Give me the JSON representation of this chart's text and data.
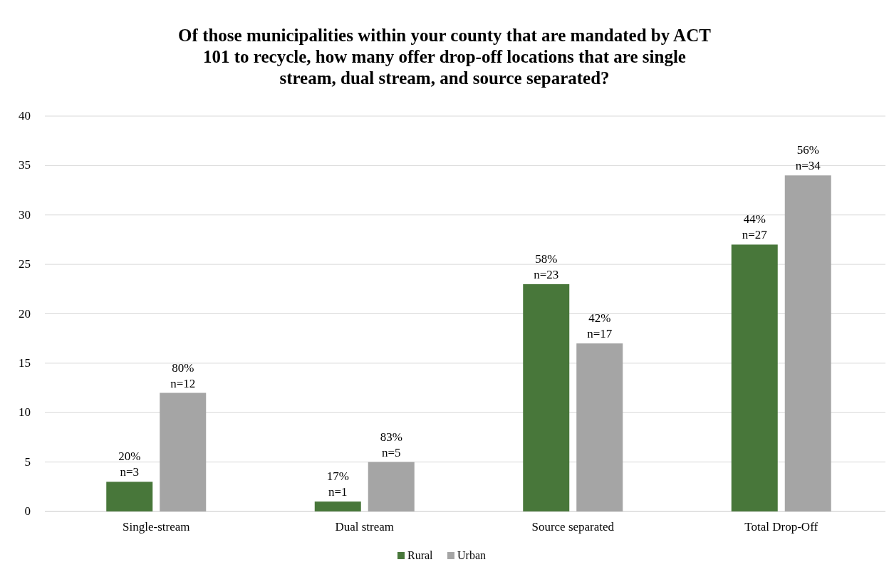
{
  "chart_data": {
    "type": "bar",
    "title": "Of those municipalities within your county that are mandated by ACT 101 to recycle, how many offer drop-off locations that are single stream, dual stream, and source separated?",
    "categories": [
      "Single-stream",
      "Dual stream",
      "Source separated",
      "Total Drop-Off"
    ],
    "series": [
      {
        "name": "Rural",
        "color": "#48773a",
        "values": [
          3,
          1,
          23,
          27
        ],
        "value_labels": [
          "20%\nn=3",
          "17%\nn=1",
          "58%\nn=23",
          "44%\nn=27"
        ]
      },
      {
        "name": "Urban",
        "color": "#a5a5a5",
        "values": [
          12,
          5,
          17,
          34
        ],
        "value_labels": [
          "80%\nn=12",
          "83%\nn=5",
          "42%\nn=17",
          "56%\nn=34"
        ]
      }
    ],
    "ylim": [
      0,
      40
    ],
    "yticks": [
      0,
      5,
      10,
      15,
      20,
      25,
      30,
      35,
      40
    ],
    "grid": "y",
    "legend": "bottom"
  }
}
